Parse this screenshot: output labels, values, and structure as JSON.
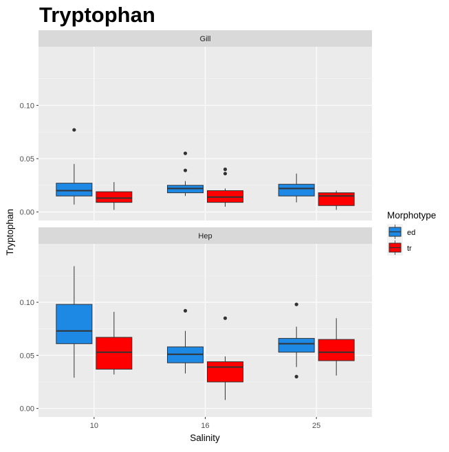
{
  "chart_data": {
    "type": "boxplot",
    "title": "Tryptophan",
    "xlabel": "Salinity",
    "ylabel": "Tryptophan",
    "categories": [
      "10",
      "16",
      "25"
    ],
    "ylim": [
      -0.008,
      0.155
    ],
    "yticks": [
      0.0,
      0.05,
      0.1
    ],
    "ytick_labels": [
      "0.00",
      "0.05",
      "0.10"
    ],
    "grid": true,
    "legend": {
      "title": "Morphotype",
      "position": "right",
      "items": [
        {
          "name": "ed",
          "color": "#1e88e5"
        },
        {
          "name": "tr",
          "color": "#ff0000"
        }
      ]
    },
    "panels": [
      {
        "strip": "Gill",
        "boxes": [
          {
            "category": "10",
            "group": "ed",
            "whisker_low": 0.007,
            "q1": 0.015,
            "median": 0.02,
            "q3": 0.027,
            "whisker_high": 0.045,
            "outliers": [
              0.077
            ]
          },
          {
            "category": "10",
            "group": "tr",
            "whisker_low": 0.002,
            "q1": 0.009,
            "median": 0.013,
            "q3": 0.019,
            "whisker_high": 0.028,
            "outliers": []
          },
          {
            "category": "16",
            "group": "ed",
            "whisker_low": 0.015,
            "q1": 0.018,
            "median": 0.022,
            "q3": 0.025,
            "whisker_high": 0.029,
            "outliers": [
              0.055,
              0.039
            ]
          },
          {
            "category": "16",
            "group": "tr",
            "whisker_low": 0.005,
            "q1": 0.009,
            "median": 0.014,
            "q3": 0.02,
            "whisker_high": 0.022,
            "outliers": [
              0.04,
              0.036
            ]
          },
          {
            "category": "25",
            "group": "ed",
            "whisker_low": 0.009,
            "q1": 0.015,
            "median": 0.022,
            "q3": 0.026,
            "whisker_high": 0.036,
            "outliers": []
          },
          {
            "category": "25",
            "group": "tr",
            "whisker_low": 0.002,
            "q1": 0.006,
            "median": 0.015,
            "q3": 0.018,
            "whisker_high": 0.02,
            "outliers": []
          }
        ]
      },
      {
        "strip": "Hep",
        "boxes": [
          {
            "category": "10",
            "group": "ed",
            "whisker_low": 0.029,
            "q1": 0.061,
            "median": 0.073,
            "q3": 0.098,
            "whisker_high": 0.134,
            "outliers": []
          },
          {
            "category": "10",
            "group": "tr",
            "whisker_low": 0.032,
            "q1": 0.037,
            "median": 0.053,
            "q3": 0.067,
            "whisker_high": 0.091,
            "outliers": []
          },
          {
            "category": "16",
            "group": "ed",
            "whisker_low": 0.033,
            "q1": 0.043,
            "median": 0.051,
            "q3": 0.058,
            "whisker_high": 0.073,
            "outliers": [
              0.092
            ]
          },
          {
            "category": "16",
            "group": "tr",
            "whisker_low": 0.008,
            "q1": 0.025,
            "median": 0.039,
            "q3": 0.044,
            "whisker_high": 0.049,
            "outliers": [
              0.085
            ]
          },
          {
            "category": "25",
            "group": "ed",
            "whisker_low": 0.039,
            "q1": 0.053,
            "median": 0.061,
            "q3": 0.066,
            "whisker_high": 0.077,
            "outliers": [
              0.098,
              0.03
            ]
          },
          {
            "category": "25",
            "group": "tr",
            "whisker_low": 0.031,
            "q1": 0.045,
            "median": 0.053,
            "q3": 0.065,
            "whisker_high": 0.085,
            "outliers": []
          }
        ]
      }
    ]
  }
}
